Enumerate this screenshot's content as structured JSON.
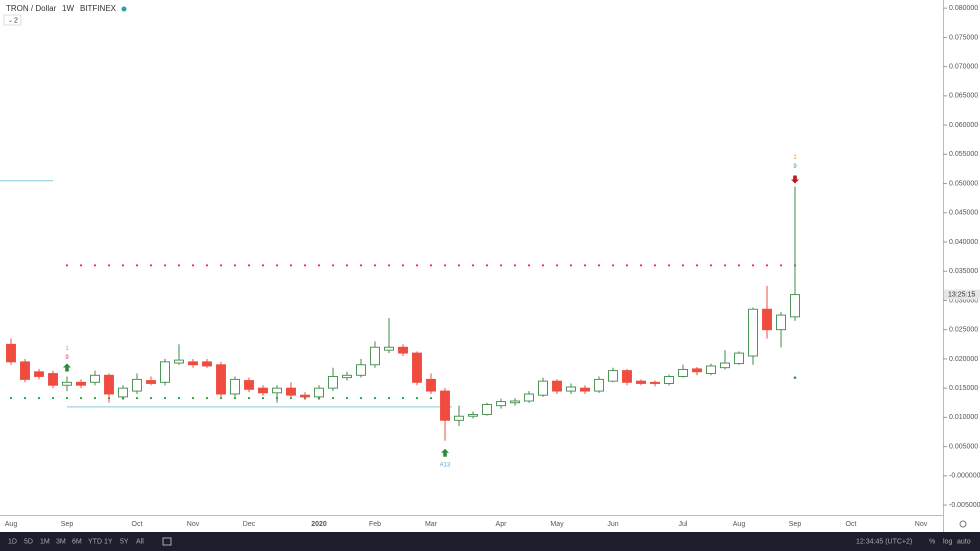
{
  "header": {
    "symbol": "TRON / Dollar",
    "interval": "1W",
    "exchange": "BITFINEX",
    "indicator_count": "2"
  },
  "chart_data": {
    "type": "candlestick",
    "categories": [
      "Aug",
      null,
      null,
      null,
      "Sep",
      null,
      null,
      null,
      null,
      "Oct",
      null,
      null,
      null,
      "Nov",
      null,
      null,
      null,
      "Dec",
      null,
      null,
      null,
      null,
      "2020",
      null,
      null,
      null,
      "Feb",
      null,
      null,
      null,
      "Mar",
      null,
      null,
      null,
      null,
      "Apr",
      null,
      null,
      null,
      "May",
      null,
      null,
      null,
      "Jun",
      null,
      null,
      null,
      null,
      "Jul",
      null,
      null,
      null,
      "Aug",
      null,
      null,
      null,
      "Sep",
      null,
      null,
      null,
      "Oct",
      null,
      null,
      null,
      null,
      "Nov"
    ],
    "open": [
      0.0225,
      0.0195,
      0.0178,
      0.0175,
      0.0155,
      0.016,
      0.016,
      0.0172,
      0.0135,
      0.0145,
      0.0163,
      0.016,
      0.0193,
      0.0195,
      0.0195,
      0.019,
      0.014,
      0.0163,
      0.015,
      0.0142,
      0.015,
      0.0138,
      0.0135,
      0.015,
      0.0168,
      0.0172,
      0.019,
      0.0215,
      0.022,
      0.021,
      0.0165,
      0.0145,
      0.0095,
      0.0102,
      0.0105,
      0.012,
      0.0125,
      0.0128,
      0.0138,
      0.0162,
      0.0145,
      0.015,
      0.0145,
      0.0162,
      0.018,
      0.0162,
      0.016,
      0.0158,
      0.017,
      0.0183,
      0.0175,
      0.0185,
      0.0192,
      0.0205,
      0.0285,
      0.025,
      0.0272,
      null,
      null,
      null,
      null,
      null,
      null,
      null,
      null,
      null
    ],
    "high": [
      0.0235,
      0.02,
      0.0183,
      0.018,
      0.017,
      0.0165,
      0.018,
      0.0175,
      0.0155,
      0.0175,
      0.017,
      0.02,
      0.0225,
      0.02,
      0.02,
      0.0195,
      0.017,
      0.0168,
      0.0155,
      0.0155,
      0.016,
      0.0143,
      0.0155,
      0.0185,
      0.0178,
      0.02,
      0.023,
      0.027,
      0.0225,
      0.0213,
      0.0175,
      0.015,
      0.012,
      0.011,
      0.0125,
      0.0132,
      0.0133,
      0.0145,
      0.0168,
      0.0165,
      0.0158,
      0.0155,
      0.017,
      0.0185,
      0.0183,
      0.0165,
      0.0163,
      0.0173,
      0.019,
      0.0186,
      0.0192,
      0.0215,
      0.0213,
      0.0288,
      0.0325,
      0.028,
      0.0495,
      null,
      null,
      null,
      null,
      null,
      null,
      null,
      null,
      null
    ],
    "low": [
      0.019,
      0.016,
      0.0165,
      0.015,
      0.0145,
      0.015,
      0.0155,
      0.0125,
      0.013,
      0.014,
      0.0155,
      0.0155,
      0.019,
      0.0185,
      0.0185,
      0.0135,
      0.0135,
      0.0143,
      0.0137,
      0.0125,
      0.0133,
      0.013,
      0.013,
      0.0145,
      0.0163,
      0.0168,
      0.0185,
      0.021,
      0.0205,
      0.0155,
      0.014,
      0.006,
      0.0085,
      0.0098,
      0.0103,
      0.0115,
      0.012,
      0.0125,
      0.0135,
      0.014,
      0.014,
      0.014,
      0.0142,
      0.016,
      0.0155,
      0.0155,
      0.0153,
      0.0155,
      0.0168,
      0.0172,
      0.0172,
      0.0182,
      0.019,
      0.019,
      0.0235,
      0.022,
      0.0265,
      null,
      null,
      null,
      null,
      null,
      null,
      null,
      null,
      null
    ],
    "close": [
      0.0195,
      0.0165,
      0.017,
      0.0155,
      0.016,
      0.0155,
      0.0172,
      0.014,
      0.015,
      0.0165,
      0.0158,
      0.0195,
      0.0198,
      0.019,
      0.0188,
      0.014,
      0.0165,
      0.0148,
      0.0142,
      0.015,
      0.0138,
      0.0135,
      0.015,
      0.017,
      0.0172,
      0.019,
      0.022,
      0.022,
      0.021,
      0.016,
      0.0145,
      0.0095,
      0.0102,
      0.0105,
      0.0122,
      0.0127,
      0.0128,
      0.014,
      0.0162,
      0.0145,
      0.0152,
      0.0145,
      0.0165,
      0.018,
      0.016,
      0.0158,
      0.0158,
      0.017,
      0.0182,
      0.0178,
      0.0188,
      0.0193,
      0.021,
      0.0285,
      0.025,
      0.0275,
      0.031,
      null,
      null,
      null,
      null,
      null,
      null,
      null,
      null,
      null
    ],
    "up_color": "#3d8b4a",
    "down_color": "#ef4b3f",
    "ylim": [
      -0.0067,
      0.0814
    ],
    "yticks": [
      {
        "value": -0.005,
        "label": "-0.005000"
      },
      {
        "value": 0,
        "label": "-0.000000"
      },
      {
        "value": 0.005,
        "label": "0.005000"
      },
      {
        "value": 0.01,
        "label": "0.010000"
      },
      {
        "value": 0.015,
        "label": "0.015000"
      },
      {
        "value": 0.02,
        "label": "0.020000"
      },
      {
        "value": 0.025,
        "label": "0.025000"
      },
      {
        "value": 0.03,
        "label": "0.030000"
      },
      {
        "value": 0.035,
        "label": "0.035000"
      },
      {
        "value": 0.04,
        "label": "0.040000"
      },
      {
        "value": 0.045,
        "label": "0.045000"
      },
      {
        "value": 0.05,
        "label": "0.050000"
      },
      {
        "value": 0.055,
        "label": "0.055000"
      },
      {
        "value": 0.06,
        "label": "0.060000"
      },
      {
        "value": 0.065,
        "label": "0.065000"
      },
      {
        "value": 0.07,
        "label": "0.070000"
      },
      {
        "value": 0.075,
        "label": "0.075000"
      },
      {
        "value": 0.08,
        "label": "0.080000"
      }
    ],
    "levels": [
      {
        "value": 0.036,
        "color": "#f23645"
      },
      {
        "value": 0.0133,
        "color": "#22a03a"
      },
      {
        "value": 0.0118,
        "color": "#9fd4e0"
      },
      {
        "value": 0.0505,
        "color": "#9fd4e0"
      }
    ],
    "annotations": [
      {
        "text": "1",
        "color": "#f0a020"
      },
      {
        "text": "9",
        "color": "#f23645"
      },
      {
        "text": "1",
        "color": "#f0a020"
      },
      {
        "text": "9",
        "color": "#3da24a"
      },
      {
        "text": "A13",
        "color": "#5aa9d6"
      }
    ],
    "countdown": "13:25:15"
  },
  "toolbar": {
    "ranges": [
      "1D",
      "5D",
      "1M",
      "3M",
      "6M",
      "YTD",
      "1Y",
      "5Y",
      "All"
    ],
    "clock": "12:34:45 (UTC+2)",
    "options": [
      "%",
      "log",
      "auto"
    ]
  }
}
